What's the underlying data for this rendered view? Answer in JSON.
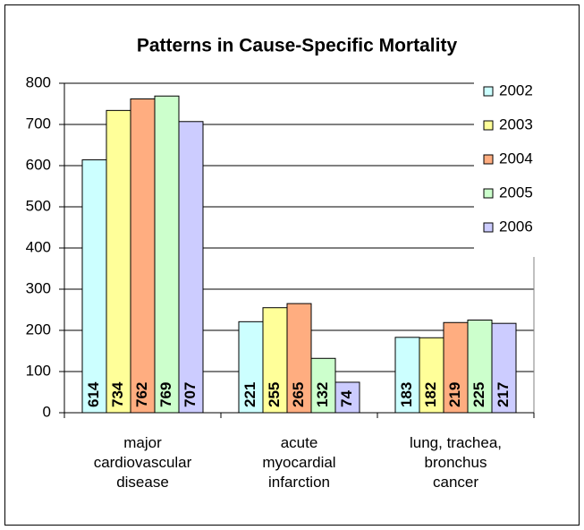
{
  "chart_data": {
    "type": "bar",
    "title": "Patterns in Cause-Specific Mortality",
    "categories": [
      "major cardiovascular disease",
      "acute myocardial infarction",
      "lung, trachea, bronchus cancer"
    ],
    "series": [
      {
        "name": "2002",
        "color": "#ccffff",
        "values": [
          614,
          221,
          183
        ]
      },
      {
        "name": "2003",
        "color": "#ffff99",
        "values": [
          734,
          255,
          182
        ]
      },
      {
        "name": "2004",
        "color": "#ffad80",
        "values": [
          762,
          265,
          219
        ]
      },
      {
        "name": "2005",
        "color": "#ccffcc",
        "values": [
          769,
          132,
          225
        ]
      },
      {
        "name": "2006",
        "color": "#ccccff",
        "values": [
          707,
          74,
          217
        ]
      }
    ],
    "ylim": [
      0,
      800
    ],
    "yticks": [
      0,
      100,
      200,
      300,
      400,
      500,
      600,
      700,
      800
    ],
    "grid": true,
    "legend": "right"
  }
}
